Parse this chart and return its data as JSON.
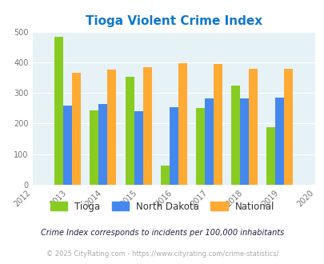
{
  "title": "Tioga Violent Crime Index",
  "years": [
    2013,
    2014,
    2015,
    2016,
    2017,
    2018,
    2019
  ],
  "tioga": [
    483,
    244,
    352,
    62,
    250,
    325,
    187
  ],
  "north_dakota": [
    258,
    265,
    240,
    253,
    281,
    281,
    284
  ],
  "national": [
    367,
    377,
    385,
    398,
    394,
    380,
    380
  ],
  "tioga_color": "#88cc22",
  "north_dakota_color": "#4488ee",
  "national_color": "#ffaa33",
  "title_color": "#1177cc",
  "bg_color": "#e6f2f5",
  "xlim": [
    2012,
    2020
  ],
  "ylim": [
    0,
    500
  ],
  "yticks": [
    0,
    100,
    200,
    300,
    400,
    500
  ],
  "bar_width": 0.25,
  "footnote1": "Crime Index corresponds to incidents per 100,000 inhabitants",
  "footnote2": "© 2025 CityRating.com - https://www.cityrating.com/crime-statistics/"
}
